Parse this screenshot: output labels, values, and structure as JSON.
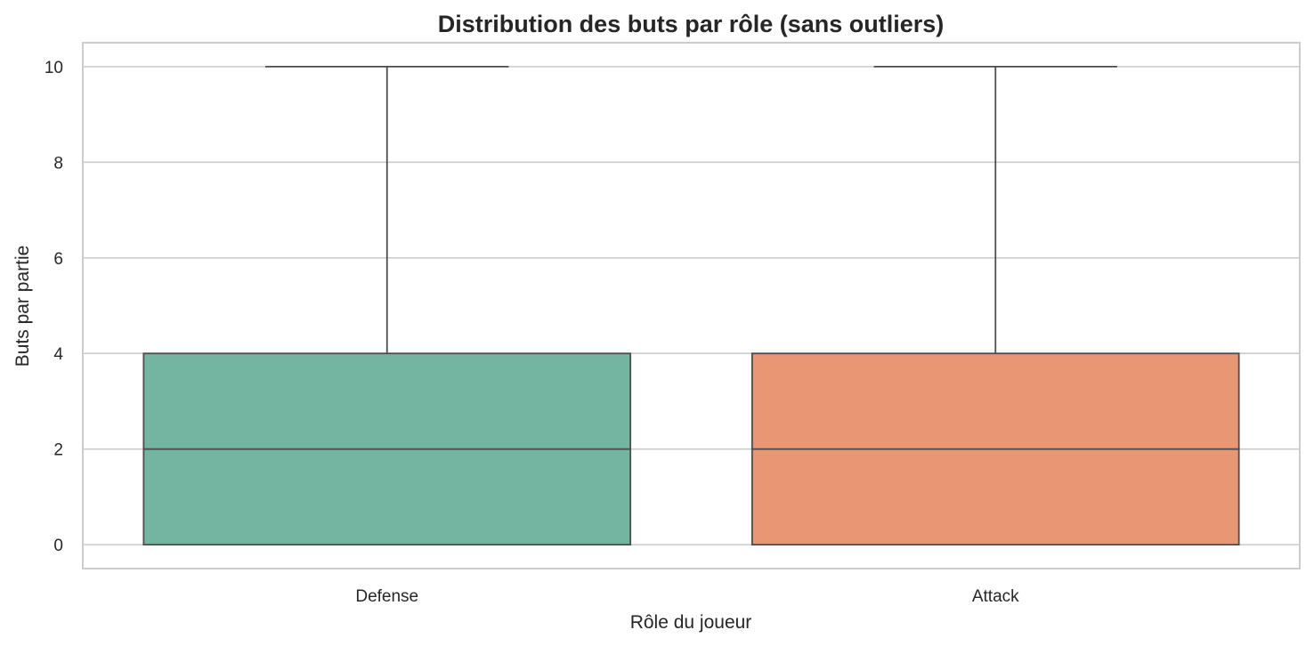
{
  "chart_data": {
    "type": "box",
    "title": "Distribution des buts par rôle (sans outliers)",
    "xlabel": "Rôle du joueur",
    "ylabel": "Buts par partie",
    "ylim": [
      -0.5,
      10.5
    ],
    "yticks": [
      0,
      2,
      4,
      6,
      8,
      10
    ],
    "grid": true,
    "categories": [
      "Defense",
      "Attack"
    ],
    "boxes": [
      {
        "category": "Defense",
        "whisker_low": 0,
        "q1": 0,
        "median": 2,
        "q3": 4,
        "whisker_high": 10,
        "color": "#73b5a1"
      },
      {
        "category": "Attack",
        "whisker_low": 0,
        "q1": 0,
        "median": 2,
        "q3": 4,
        "whisker_high": 10,
        "color": "#e89674"
      }
    ]
  }
}
